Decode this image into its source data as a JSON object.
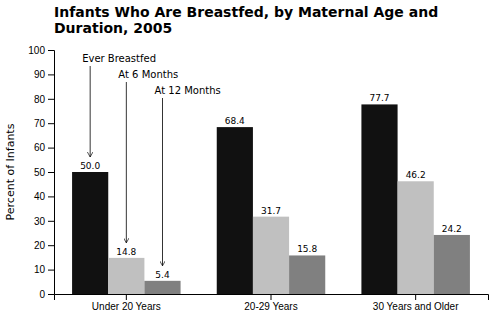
{
  "chart_data": {
    "type": "bar",
    "title": "Infants Who Are Breastfed, by Maternal Age and\nDuration, 2005",
    "y_label": "Percent of Infants",
    "categories": [
      "Under 20 Years",
      "20-29 Years",
      "30 Years and Older"
    ],
    "series": [
      {
        "name": "Ever Breastfed",
        "color": "#111111",
        "values": [
          50.0,
          68.4,
          77.7
        ],
        "value_labels": [
          "50.0",
          "68.4",
          "77.7"
        ]
      },
      {
        "name": "At 6 Months",
        "color": "#c0c0c0",
        "values": [
          14.8,
          31.7,
          46.2
        ],
        "value_labels": [
          "14.8",
          "31.7",
          "46.2"
        ]
      },
      {
        "name": "At 12 Months",
        "color": "#808080",
        "values": [
          5.4,
          15.8,
          24.2
        ],
        "value_labels": [
          "5.4",
          "15.8",
          "24.2"
        ]
      }
    ],
    "ylim": [
      0,
      100
    ],
    "yticks": [
      0,
      10,
      20,
      30,
      40,
      50,
      60,
      70,
      80,
      90,
      100
    ],
    "grid": false,
    "data_labels": true
  }
}
